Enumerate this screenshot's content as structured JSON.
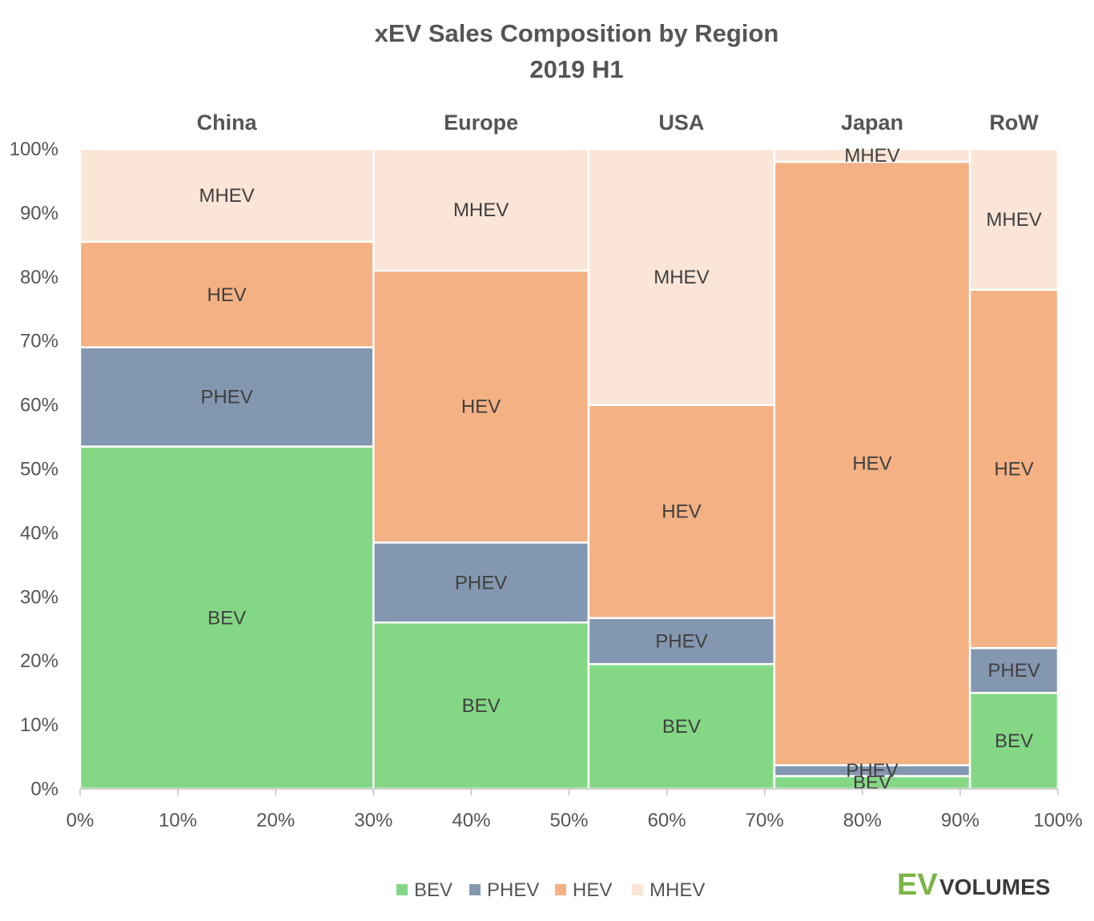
{
  "chart_data": {
    "type": "mekko",
    "title": "xEV Sales Composition by Region",
    "subtitle": "2019 H1",
    "regions": [
      {
        "name": "China",
        "share_start": 0,
        "share_end": 30,
        "segments": {
          "BEV": 53.5,
          "PHEV": 15.5,
          "HEV": 16.5,
          "MHEV": 14.5
        }
      },
      {
        "name": "Europe",
        "share_start": 30,
        "share_end": 52,
        "segments": {
          "BEV": 26.0,
          "PHEV": 12.5,
          "HEV": 42.5,
          "MHEV": 19.0
        }
      },
      {
        "name": "USA",
        "share_start": 52,
        "share_end": 71,
        "segments": {
          "BEV": 19.5,
          "PHEV": 7.2,
          "HEV": 33.3,
          "MHEV": 40.0
        }
      },
      {
        "name": "Japan",
        "share_start": 71,
        "share_end": 91,
        "segments": {
          "BEV": 2.0,
          "PHEV": 1.7,
          "HEV": 94.3,
          "MHEV": 2.0
        }
      },
      {
        "name": "RoW",
        "share_start": 91,
        "share_end": 100,
        "segments": {
          "BEV": 15.0,
          "PHEV": 7.0,
          "HEV": 56.0,
          "MHEV": 22.0
        }
      }
    ],
    "series": [
      "BEV",
      "PHEV",
      "HEV",
      "MHEV"
    ],
    "colors": {
      "BEV": "#84d885",
      "PHEV": "#8497b0",
      "HEV": "#f4b183",
      "MHEV": "#fae5d7"
    },
    "x_ticks": [
      "0%",
      "10%",
      "20%",
      "30%",
      "40%",
      "50%",
      "60%",
      "70%",
      "80%",
      "90%",
      "100%"
    ],
    "y_ticks": [
      "0%",
      "10%",
      "20%",
      "30%",
      "40%",
      "50%",
      "60%",
      "70%",
      "80%",
      "90%",
      "100%"
    ],
    "xlim": [
      0,
      100
    ],
    "ylim": [
      0,
      100
    ],
    "legend_position": "bottom"
  },
  "legend": [
    {
      "key": "BEV",
      "label": "BEV"
    },
    {
      "key": "PHEV",
      "label": "PHEV"
    },
    {
      "key": "HEV",
      "label": "HEV"
    },
    {
      "key": "MHEV",
      "label": "MHEV"
    }
  ],
  "logo": {
    "ev": "EV",
    "volumes": "VOLUMES"
  }
}
